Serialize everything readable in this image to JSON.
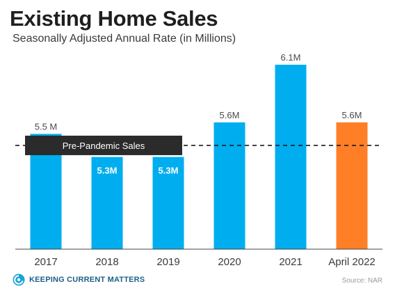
{
  "header": {
    "title": "Existing Home Sales",
    "subtitle": "Seasonally Adjusted Annual Rate (in Millions)"
  },
  "chart_data": {
    "type": "bar",
    "title": "Existing Home Sales",
    "subtitle": "Seasonally Adjusted Annual Rate (in Millions)",
    "categories": [
      "2017",
      "2018",
      "2019",
      "2020",
      "2021",
      "April 2022"
    ],
    "values": [
      5.5,
      5.3,
      5.3,
      5.6,
      6.1,
      5.6
    ],
    "data_labels": [
      "5.5 M",
      "5.3M",
      "5.3M",
      "5.6M",
      "6.1M",
      "5.6M"
    ],
    "bar_colors": [
      "#00aeef",
      "#00aeef",
      "#00aeef",
      "#00aeef",
      "#00aeef",
      "#ff7f27"
    ],
    "reference_line": {
      "value": 5.4,
      "label": "Pre-Pandemic Sales",
      "style": "dashed"
    },
    "ylim": [
      4.5,
      6.2
    ],
    "grid": false,
    "xlabel": "",
    "ylabel": ""
  },
  "colors": {
    "bar": "#00aeef",
    "highlight_bar": "#ff7f27",
    "label_box": "#2b2b2b",
    "title": "#1f1f1f"
  },
  "footer": {
    "brand": "Keeping Current Matters",
    "brand_icon": "kcm-logo-icon",
    "source": "Source: NAR"
  }
}
